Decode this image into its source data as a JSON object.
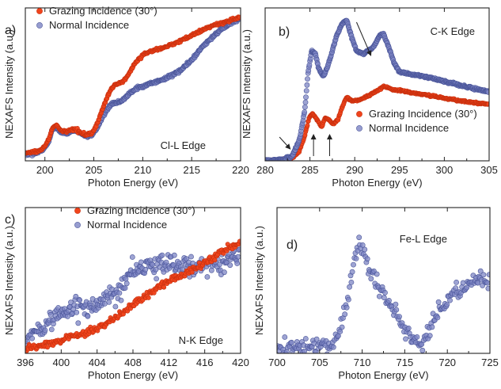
{
  "figure": {
    "colors": {
      "grazing": "#f0441c",
      "normal": "#7d85c4",
      "normal_edge": "#4a5599",
      "grazing_edge": "#c8300e"
    }
  },
  "chart_data": [
    {
      "type": "scatter",
      "panel_label": "a)",
      "edge_label": "Cl-L Edge",
      "xlabel": "Photon Energy (eV)",
      "ylabel": "NEXAFS Intensity (a.u.)",
      "xlim": [
        198,
        220
      ],
      "ylim": [
        0,
        1
      ],
      "xticks": [
        200,
        205,
        210,
        215,
        220
      ],
      "legend_position": "top-left",
      "show_legend": true,
      "y_ticks_labeled": false,
      "series": [
        {
          "name": "Grazing Incidence (30°)",
          "color": "#f0441c",
          "sigma": 0.004,
          "x": [
            198,
            199,
            199.8,
            200.4,
            200.8,
            201.2,
            201.6,
            202.2,
            203,
            203.6,
            204.2,
            204.8,
            205.4,
            206,
            206.6,
            207.2,
            207.8,
            208.4,
            209,
            209.6,
            210.2,
            211,
            212,
            213,
            214,
            215,
            216,
            217,
            218,
            219,
            220
          ],
          "y": [
            0.05,
            0.06,
            0.08,
            0.14,
            0.22,
            0.23,
            0.2,
            0.19,
            0.21,
            0.19,
            0.17,
            0.18,
            0.25,
            0.36,
            0.45,
            0.5,
            0.51,
            0.55,
            0.62,
            0.67,
            0.7,
            0.72,
            0.74,
            0.76,
            0.79,
            0.82,
            0.85,
            0.88,
            0.9,
            0.92,
            0.94
          ]
        },
        {
          "name": "Normal Incidence",
          "color": "#7d85c4",
          "sigma": 0.004,
          "x": [
            198,
            199,
            199.8,
            200.4,
            200.8,
            201.2,
            201.6,
            202.2,
            203,
            203.6,
            204.2,
            204.8,
            205.4,
            206,
            206.6,
            207.2,
            207.8,
            208.4,
            209,
            209.6,
            210.2,
            211,
            212,
            213,
            214,
            215,
            216,
            217,
            218,
            219,
            220
          ],
          "y": [
            0.04,
            0.05,
            0.07,
            0.13,
            0.21,
            0.22,
            0.19,
            0.18,
            0.2,
            0.18,
            0.16,
            0.17,
            0.22,
            0.3,
            0.36,
            0.38,
            0.39,
            0.42,
            0.46,
            0.48,
            0.49,
            0.51,
            0.53,
            0.56,
            0.6,
            0.66,
            0.74,
            0.8,
            0.86,
            0.9,
            0.93
          ]
        }
      ]
    },
    {
      "type": "scatter",
      "panel_label": "b)",
      "edge_label": "C-K Edge",
      "xlabel": "Photon Energy (eV)",
      "ylabel": "NEXAFS Intensity (a.u.)",
      "xlim": [
        280,
        305
      ],
      "ylim": [
        0,
        1
      ],
      "xticks": [
        280,
        285,
        290,
        295,
        300,
        305
      ],
      "legend_position": "bottom-right",
      "show_legend": true,
      "y_ticks_labeled": false,
      "series": [
        {
          "name": "Grazing Incidence (30°)",
          "color": "#f0441c",
          "sigma": 0.003,
          "x": [
            280,
            282,
            283,
            283.8,
            284.4,
            284.9,
            285.3,
            285.8,
            286.3,
            286.7,
            287.1,
            287.6,
            288.1,
            288.6,
            289.1,
            289.8,
            290.6,
            291.6,
            292.6,
            293.3,
            294,
            295,
            296,
            297,
            298,
            299,
            300,
            302,
            305
          ],
          "y": [
            0.0,
            0.01,
            0.02,
            0.06,
            0.16,
            0.28,
            0.31,
            0.27,
            0.22,
            0.28,
            0.27,
            0.24,
            0.27,
            0.35,
            0.42,
            0.39,
            0.4,
            0.43,
            0.46,
            0.49,
            0.47,
            0.46,
            0.45,
            0.44,
            0.43,
            0.42,
            0.41,
            0.39,
            0.37
          ]
        },
        {
          "name": "Normal Incidence",
          "color": "#7d85c4",
          "sigma": 0.003,
          "x": [
            280,
            282,
            283,
            283.8,
            284.4,
            284.8,
            285.2,
            285.6,
            286,
            286.5,
            287,
            287.5,
            288,
            288.6,
            289.1,
            289.6,
            290.2,
            291,
            292,
            292.8,
            293.2,
            293.8,
            294.4,
            295,
            296,
            297,
            298,
            300,
            302,
            305
          ],
          "y": [
            0.0,
            0.01,
            0.03,
            0.13,
            0.32,
            0.58,
            0.72,
            0.7,
            0.6,
            0.55,
            0.62,
            0.72,
            0.82,
            0.9,
            0.92,
            0.82,
            0.72,
            0.7,
            0.74,
            0.82,
            0.83,
            0.74,
            0.64,
            0.58,
            0.57,
            0.56,
            0.55,
            0.52,
            0.49,
            0.45
          ]
        }
      ]
    },
    {
      "type": "scatter",
      "panel_label": "c)",
      "edge_label": "N-K Edge",
      "xlabel": "Photon Energy (eV)",
      "ylabel": "NEXAFS Intensity (a.u.)",
      "xlim": [
        396,
        420
      ],
      "ylim": [
        0,
        1
      ],
      "xticks": [
        396,
        400,
        404,
        408,
        412,
        416,
        420
      ],
      "legend_position": "top-left",
      "show_legend": true,
      "y_ticks_labeled": false,
      "series": [
        {
          "name": "Grazing Incidence (30°)",
          "color": "#f0441c",
          "sigma": 0.012,
          "x": [
            396,
            398,
            400,
            402,
            404,
            406,
            408,
            410,
            412,
            414,
            416,
            418,
            420
          ],
          "y": [
            0.03,
            0.06,
            0.09,
            0.13,
            0.17,
            0.24,
            0.33,
            0.42,
            0.5,
            0.55,
            0.62,
            0.7,
            0.76
          ]
        },
        {
          "name": "Normal Incidence",
          "color": "#7d85c4",
          "sigma": 0.035,
          "x": [
            396,
            398,
            400,
            402,
            404,
            406,
            408,
            410,
            412,
            414,
            416,
            418,
            420
          ],
          "y": [
            0.08,
            0.18,
            0.28,
            0.33,
            0.32,
            0.42,
            0.55,
            0.6,
            0.63,
            0.6,
            0.6,
            0.62,
            0.7
          ]
        }
      ]
    },
    {
      "type": "scatter",
      "panel_label": "d)",
      "edge_label": "Fe-L Edge",
      "xlabel": "Photon Energy (eV)",
      "ylabel": "NEXAFS Intensity (a.u.)",
      "xlim": [
        700,
        725
      ],
      "ylim": [
        0,
        1
      ],
      "xticks": [
        700,
        705,
        710,
        715,
        720,
        725
      ],
      "show_legend": false,
      "y_ticks_labeled": false,
      "series": [
        {
          "name": "",
          "color": "#7d85c4",
          "sigma": 0.03,
          "x": [
            700,
            702,
            704,
            706,
            707,
            708,
            709,
            709.6,
            710,
            711,
            712,
            713,
            714,
            715,
            716,
            717,
            718,
            719,
            720,
            721,
            722,
            723,
            724,
            725
          ],
          "y": [
            0.02,
            0.05,
            0.05,
            0.05,
            0.1,
            0.3,
            0.62,
            0.75,
            0.72,
            0.55,
            0.45,
            0.35,
            0.28,
            0.14,
            0.1,
            0.05,
            0.2,
            0.3,
            0.38,
            0.42,
            0.46,
            0.48,
            0.5,
            0.52
          ]
        }
      ]
    }
  ]
}
